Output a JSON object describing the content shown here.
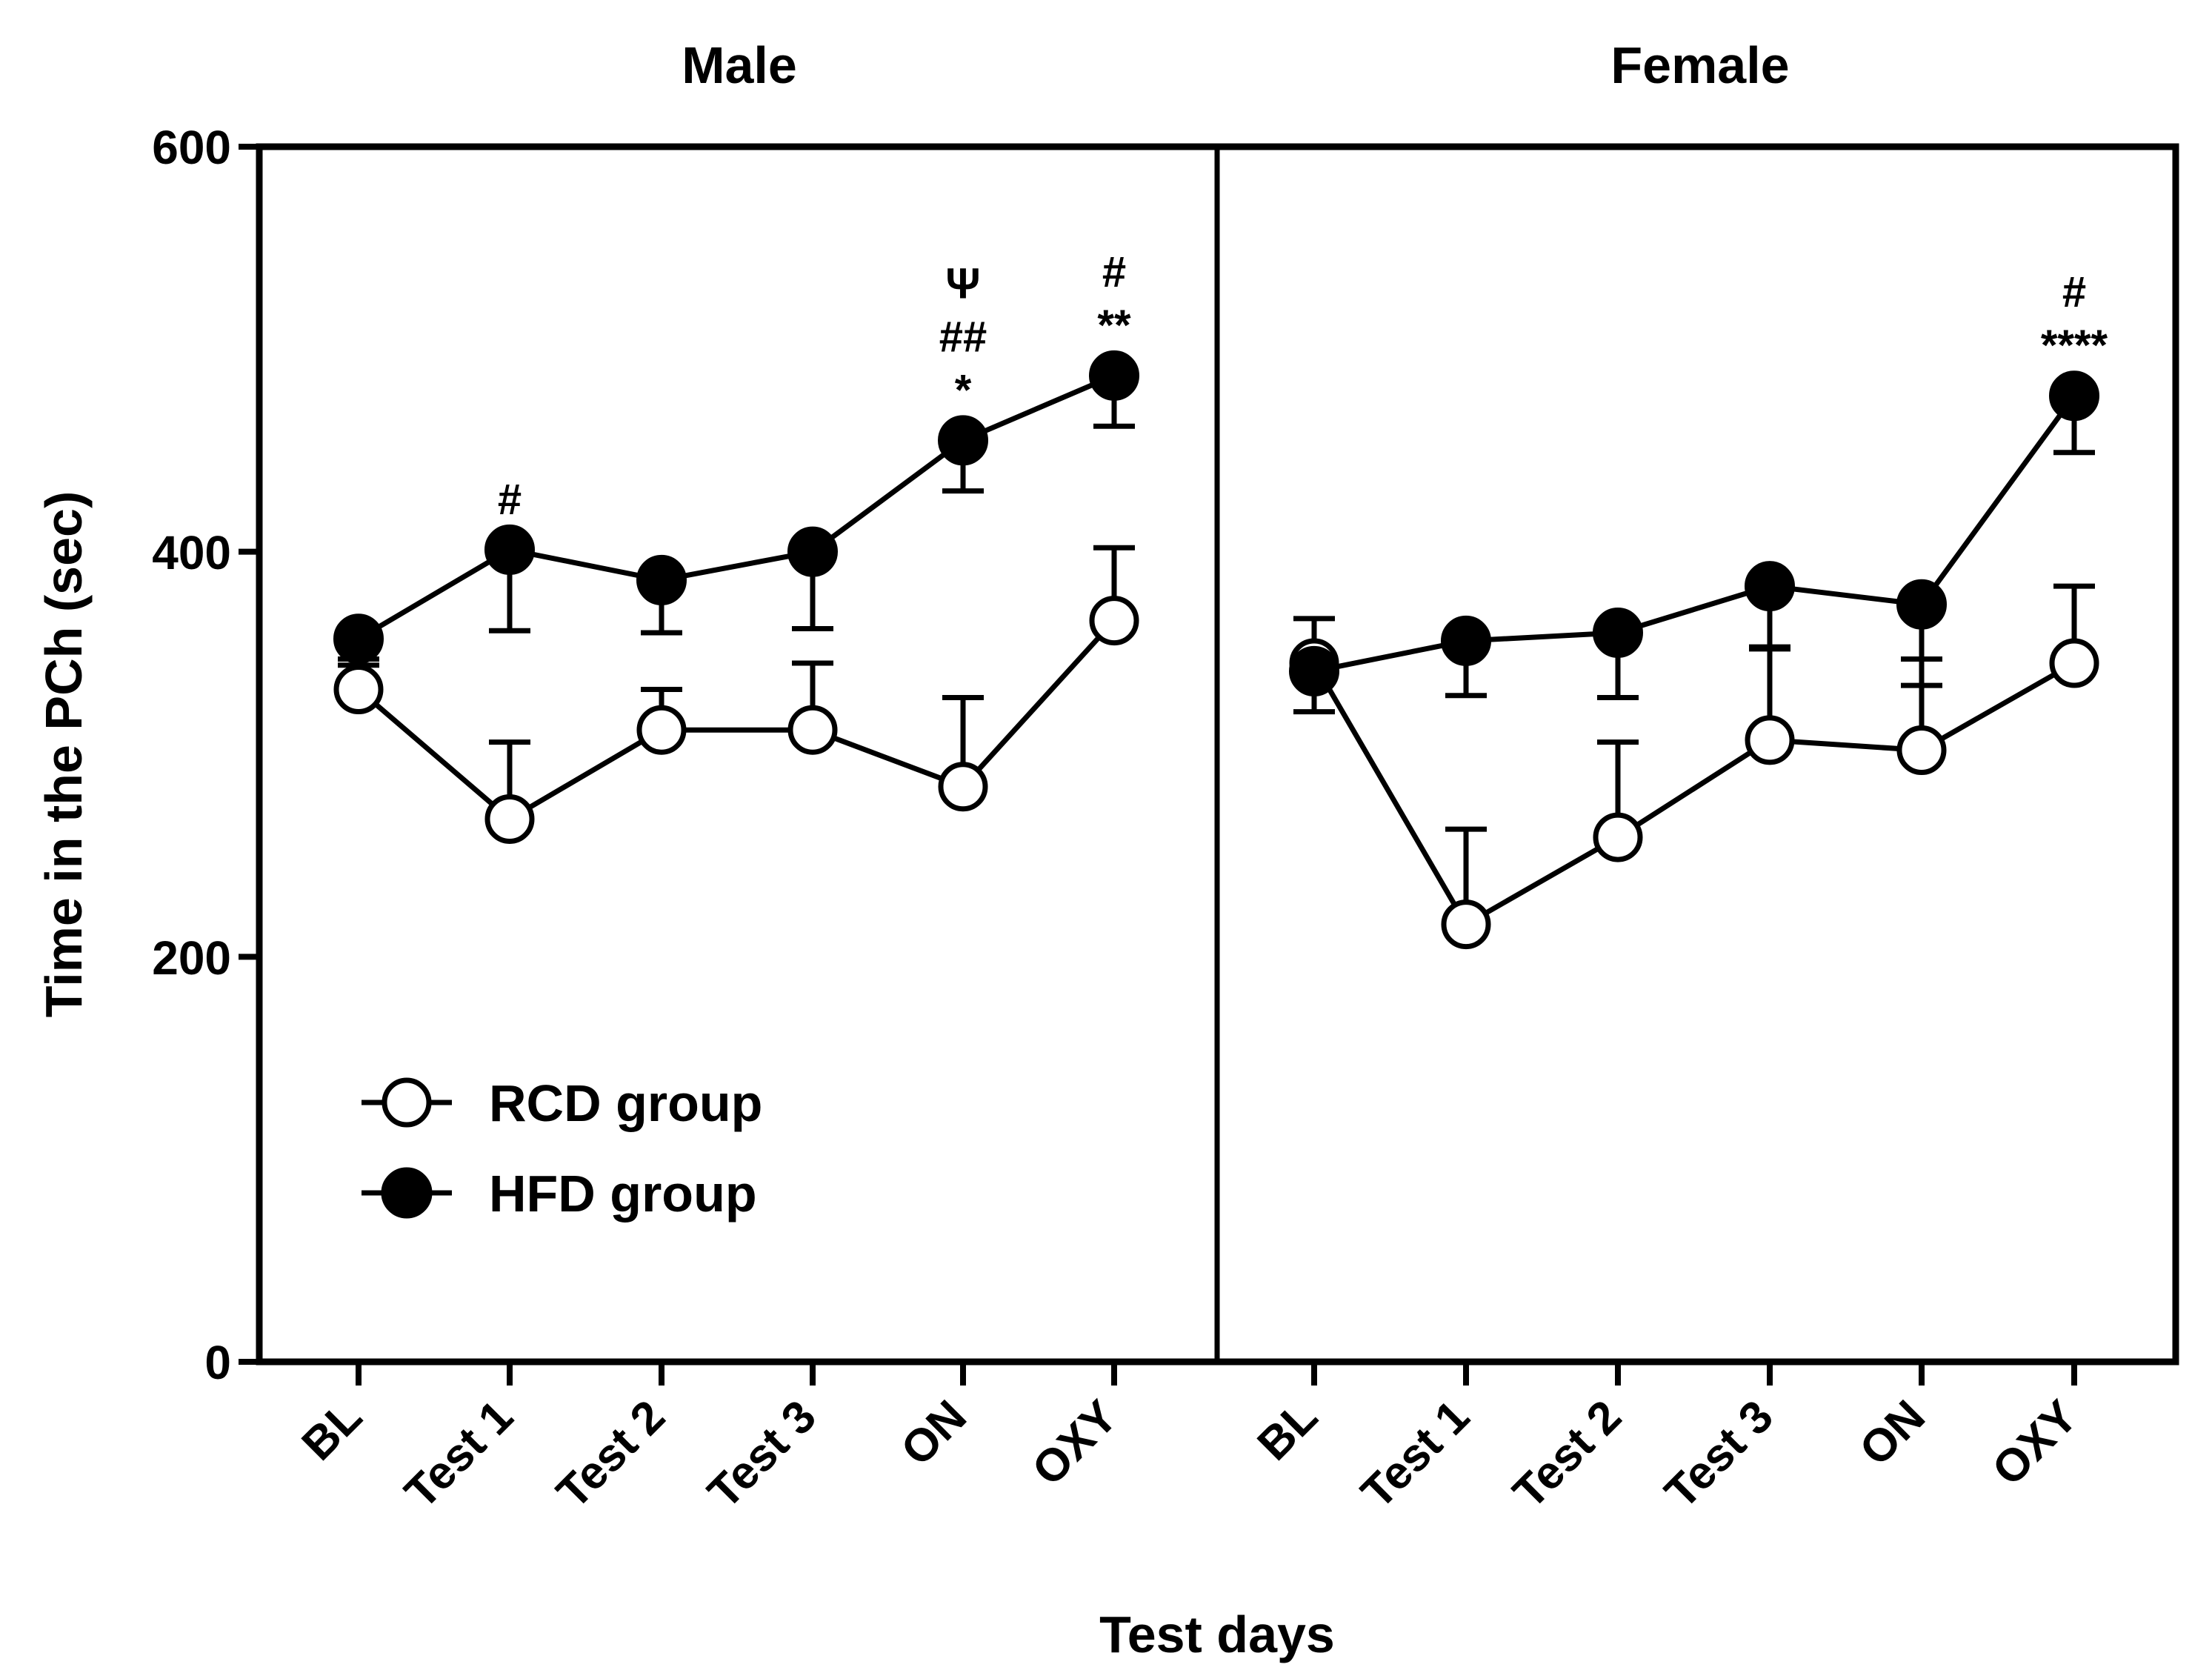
{
  "chart_data": {
    "type": "line",
    "ylabel": "Time in the PCh (sec)",
    "xlabel": "Test days",
    "ylim": [
      0,
      600
    ],
    "yticks": [
      0,
      200,
      400,
      600
    ],
    "categories": [
      "BL",
      "Test 1",
      "Test 2",
      "Test 3",
      "ON",
      "OXY"
    ],
    "legend": {
      "position": "lower-left of first panel",
      "entries": [
        {
          "name": "RCD group",
          "marker": "open-circle"
        },
        {
          "name": "HFD group",
          "marker": "filled-circle"
        }
      ]
    },
    "panels": [
      {
        "title": "Male",
        "series": [
          {
            "name": "RCD group",
            "marker": "open",
            "values": [
              332,
              268,
              312,
              312,
              284,
              366
            ],
            "err_dir": "up",
            "errors": [
              12,
              38,
              20,
              33,
              44,
              36
            ]
          },
          {
            "name": "HFD group",
            "marker": "filled",
            "values": [
              357,
              401,
              386,
              400,
              455,
              487
            ],
            "err_dir": "down",
            "errors": [
              10,
              40,
              26,
              38,
              25,
              25
            ]
          }
        ],
        "annotations": [
          {
            "category": "Test 1",
            "lines": [
              "#"
            ]
          },
          {
            "category": "ON",
            "lines": [
              "Ψ",
              "##",
              "*"
            ]
          },
          {
            "category": "OXY",
            "lines": [
              "#",
              "**"
            ]
          }
        ]
      },
      {
        "title": "Female",
        "series": [
          {
            "name": "RCD group",
            "marker": "open",
            "values": [
              345,
              216,
              259,
              307,
              302,
              345
            ],
            "err_dir": "up",
            "errors": [
              22,
              47,
              47,
              45,
              45,
              38
            ]
          },
          {
            "name": "HFD group",
            "marker": "filled",
            "values": [
              341,
              356,
              360,
              383,
              374,
              477
            ],
            "err_dir": "down",
            "errors": [
              20,
              27,
              32,
              30,
              40,
              28
            ]
          }
        ],
        "annotations": [
          {
            "category": "OXY",
            "lines": [
              "#",
              "****"
            ]
          }
        ]
      }
    ]
  }
}
